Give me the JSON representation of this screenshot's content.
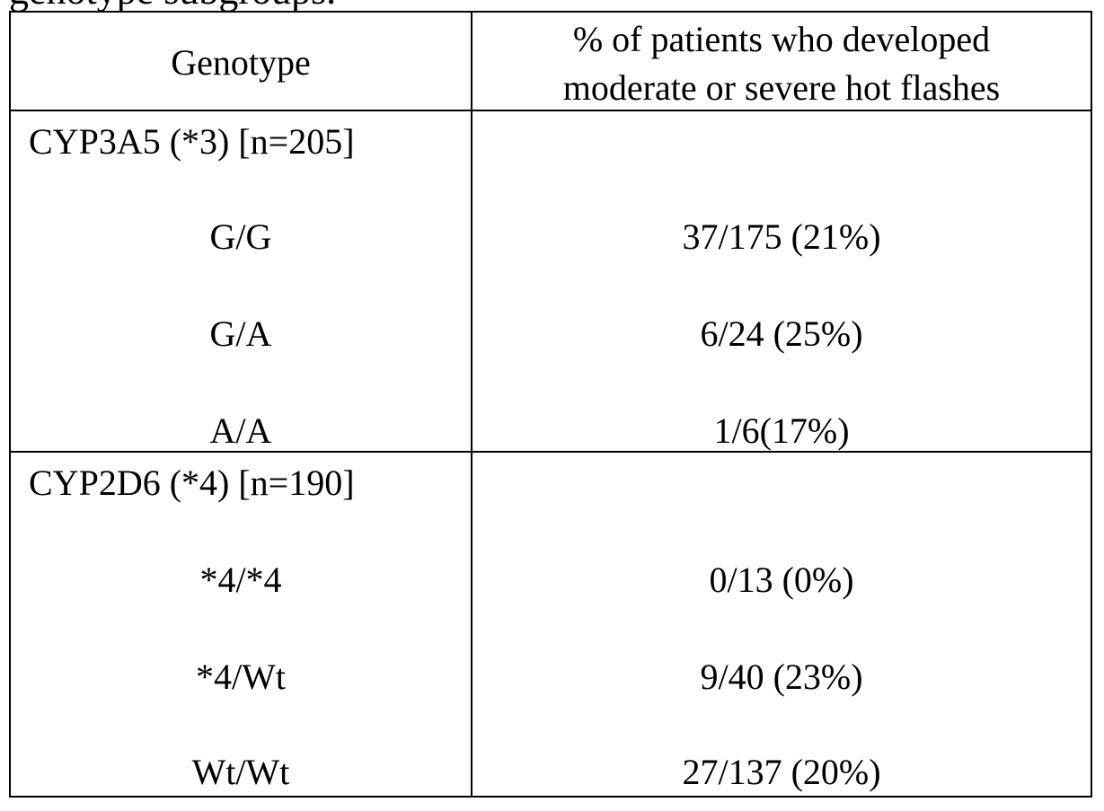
{
  "caption_fragment": "genotype subgroups.",
  "table": {
    "headers": {
      "genotype": "Genotype",
      "outcome_line1": "% of patients who developed",
      "outcome_line2": "moderate or severe hot flashes"
    },
    "groups": [
      {
        "label": "CYP3A5 (*3) [n=205]",
        "rows": [
          {
            "genotype": "G/G",
            "value": "37/175 (21%)"
          },
          {
            "genotype": "G/A",
            "value": "6/24 (25%)"
          },
          {
            "genotype": "A/A",
            "value": "1/6(17%)"
          }
        ]
      },
      {
        "label": "CYP2D6 (*4) [n=190]",
        "rows": [
          {
            "genotype": "*4/*4",
            "value": "0/13 (0%)"
          },
          {
            "genotype": "*4/Wt",
            "value": "9/40 (23%)"
          },
          {
            "genotype": "Wt/Wt",
            "value": "27/137 (20%)"
          }
        ]
      }
    ]
  }
}
